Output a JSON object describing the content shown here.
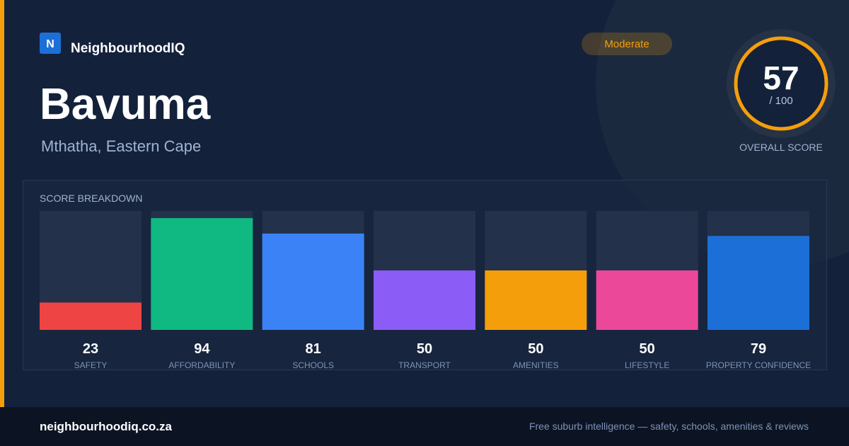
{
  "header": {
    "logo": "N",
    "brand": "NeighbourhoodIQ",
    "title": "Bavuma",
    "location": "Mthatha, Eastern Cape",
    "badge": "Moderate"
  },
  "score": {
    "value": 57,
    "suffix": "/ 100",
    "caption": "OVERALL SCORE"
  },
  "breakdown": {
    "title": "SCORE BREAKDOWN",
    "ylim": [
      0,
      100
    ],
    "items": [
      {
        "label": "SAFETY",
        "value": 23,
        "color": "#ef4444"
      },
      {
        "label": "AFFORDABILITY",
        "value": 94,
        "color": "#10b981"
      },
      {
        "label": "SCHOOLS",
        "value": 81,
        "color": "#3b82f6"
      },
      {
        "label": "TRANSPORT",
        "value": 50,
        "color": "#8b5cf6"
      },
      {
        "label": "AMENITIES",
        "value": 50,
        "color": "#f59e0b"
      },
      {
        "label": "LIFESTYLE",
        "value": 50,
        "color": "#ec4899"
      },
      {
        "label": "PROPERTY CONFIDENCE",
        "value": 79,
        "color": "#1d6fd8"
      }
    ]
  },
  "footer": {
    "domain": "neighbourhoodiq.co.za",
    "tagline": "Free suburb intelligence — safety, schools, amenities & reviews"
  }
}
